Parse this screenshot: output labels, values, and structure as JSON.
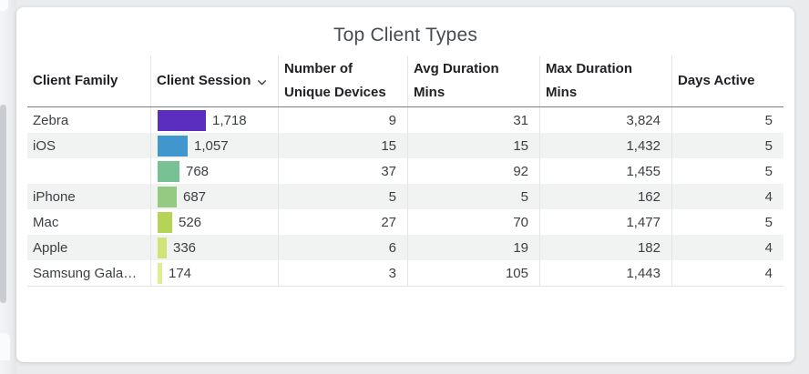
{
  "card": {
    "title": "Top Client Types"
  },
  "colors": {
    "page_background": "#e9ebed",
    "card_background": "#ffffff",
    "row_alt_background": "#f1f2f2",
    "header_divider": "#797d81",
    "column_divider": "#e4e5e7",
    "header_text": "#202124",
    "body_text": "#3c4043",
    "title_text": "#454c52",
    "scrollbar_thumb": "#c9ccd0"
  },
  "table": {
    "columns": [
      {
        "lines": [
          "Client Family"
        ],
        "sortable": false
      },
      {
        "lines": [
          "Client Session"
        ],
        "sortable": true,
        "sort_icon": "chevron-down"
      },
      {
        "lines": [
          "Number of",
          "Unique Devices"
        ],
        "sortable": false
      },
      {
        "lines": [
          "Avg Duration",
          "Mins"
        ],
        "sortable": false
      },
      {
        "lines": [
          "Max Duration",
          "Mins"
        ],
        "sortable": false
      },
      {
        "lines": [
          "Days Active"
        ],
        "sortable": false
      }
    ],
    "rows": [
      {
        "family": "Zebra",
        "sessions": 1718,
        "sessions_label": "1,718",
        "bar_color": "#5b2ec0",
        "unique_devices": "9",
        "avg_duration": "31",
        "max_duration": "3,824",
        "days_active": "5"
      },
      {
        "family": "iOS",
        "sessions": 1057,
        "sessions_label": "1,057",
        "bar_color": "#3f97cd",
        "unique_devices": "15",
        "avg_duration": "15",
        "max_duration": "1,432",
        "days_active": "5"
      },
      {
        "family": "",
        "sessions": 768,
        "sessions_label": "768",
        "bar_color": "#77c194",
        "unique_devices": "37",
        "avg_duration": "92",
        "max_duration": "1,455",
        "days_active": "5"
      },
      {
        "family": "iPhone",
        "sessions": 687,
        "sessions_label": "687",
        "bar_color": "#92cb81",
        "unique_devices": "5",
        "avg_duration": "5",
        "max_duration": "162",
        "days_active": "4"
      },
      {
        "family": "Mac",
        "sessions": 526,
        "sessions_label": "526",
        "bar_color": "#b5d455",
        "unique_devices": "27",
        "avg_duration": "70",
        "max_duration": "1,477",
        "days_active": "5"
      },
      {
        "family": "Apple",
        "sessions": 336,
        "sessions_label": "336",
        "bar_color": "#cfe377",
        "unique_devices": "6",
        "avg_duration": "19",
        "max_duration": "182",
        "days_active": "4"
      },
      {
        "family": "Samsung Gala…",
        "sessions": 174,
        "sessions_label": "174",
        "bar_color": "#e0ee92",
        "unique_devices": "3",
        "avg_duration": "105",
        "max_duration": "1,443",
        "days_active": "4"
      }
    ]
  },
  "chart_data": {
    "type": "table",
    "title": "Top Client Types",
    "columns": [
      "Client Family",
      "Client Sessions",
      "Number of Unique Devices",
      "Avg Duration Mins",
      "Max Duration Mins",
      "Days Active"
    ],
    "embedded_bar_column": "Client Sessions",
    "bar_colors": [
      "#5b2ec0",
      "#3f97cd",
      "#77c194",
      "#92cb81",
      "#b5d455",
      "#cfe377",
      "#e0ee92"
    ],
    "rows": [
      [
        "Zebra",
        1718,
        9,
        31,
        3824,
        5
      ],
      [
        "iOS",
        1057,
        15,
        15,
        1432,
        5
      ],
      [
        "",
        768,
        37,
        92,
        1455,
        5
      ],
      [
        "iPhone",
        687,
        5,
        5,
        162,
        4
      ],
      [
        "Mac",
        526,
        27,
        70,
        1477,
        5
      ],
      [
        "Apple",
        336,
        6,
        19,
        182,
        4
      ],
      [
        "Samsung Gala…",
        174,
        3,
        105,
        1443,
        4
      ]
    ],
    "bar_value_range": [
      0,
      1718
    ],
    "legend_position": "none",
    "grid": false
  }
}
